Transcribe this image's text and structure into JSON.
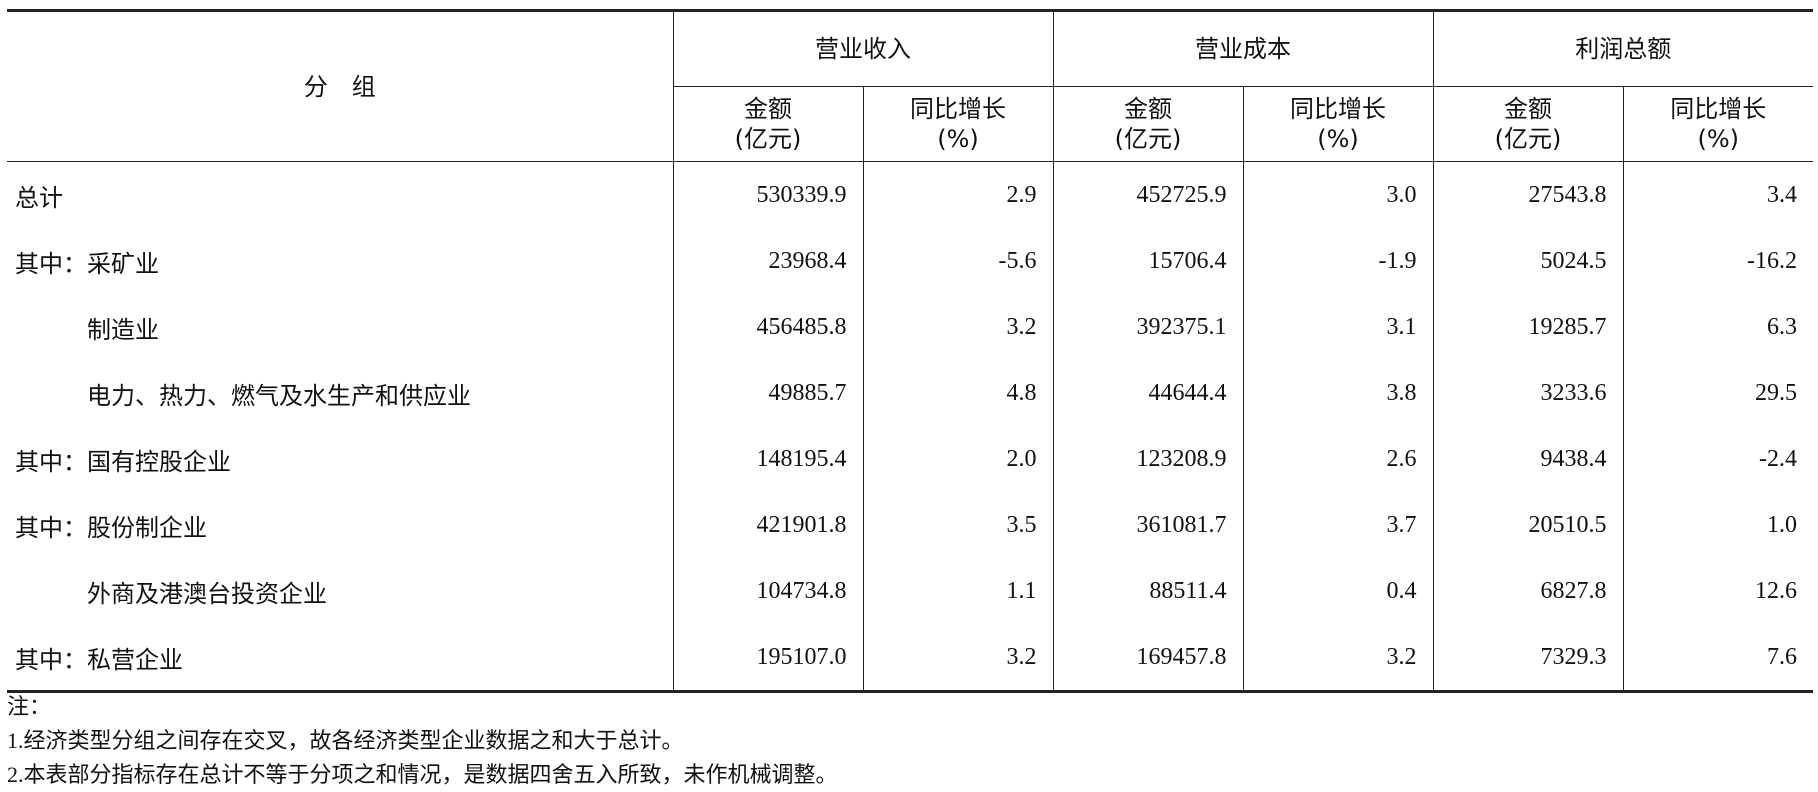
{
  "table": {
    "corner": "分　组",
    "groups": [
      "营业收入",
      "营业成本",
      "利润总额"
    ],
    "subheaders": [
      {
        "line1": "金额",
        "line2": "(亿元)"
      },
      {
        "line1": "同比增长",
        "line2": "(%)"
      },
      {
        "line1": "金额",
        "line2": "(亿元)"
      },
      {
        "line1": "同比增长",
        "line2": "(%)"
      },
      {
        "line1": "金额",
        "line2": "(亿元)"
      },
      {
        "line1": "同比增长",
        "line2": "(%)"
      }
    ],
    "rows": [
      {
        "label": "总计",
        "indent": false,
        "cells": [
          "530339.9",
          "2.9",
          "452725.9",
          "3.0",
          "27543.8",
          "3.4"
        ]
      },
      {
        "label": "其中：采矿业",
        "indent": false,
        "cells": [
          "23968.4",
          "-5.6",
          "15706.4",
          "-1.9",
          "5024.5",
          "-16.2"
        ]
      },
      {
        "label": "制造业",
        "indent": true,
        "cells": [
          "456485.8",
          "3.2",
          "392375.1",
          "3.1",
          "19285.7",
          "6.3"
        ]
      },
      {
        "label": "电力、热力、燃气及水生产和供应业",
        "indent": true,
        "cells": [
          "49885.7",
          "4.8",
          "44644.4",
          "3.8",
          "3233.6",
          "29.5"
        ]
      },
      {
        "label": "其中：国有控股企业",
        "indent": false,
        "cells": [
          "148195.4",
          "2.0",
          "123208.9",
          "2.6",
          "9438.4",
          "-2.4"
        ]
      },
      {
        "label": "其中：股份制企业",
        "indent": false,
        "cells": [
          "421901.8",
          "3.5",
          "361081.7",
          "3.7",
          "20510.5",
          "1.0"
        ]
      },
      {
        "label": "外商及港澳台投资企业",
        "indent": true,
        "cells": [
          "104734.8",
          "1.1",
          "88511.4",
          "0.4",
          "6827.8",
          "12.6"
        ]
      },
      {
        "label": "其中：私营企业",
        "indent": false,
        "cells": [
          "195107.0",
          "3.2",
          "169457.8",
          "3.2",
          "7329.3",
          "7.6"
        ]
      }
    ]
  },
  "notes": [
    "注：",
    "1.经济类型分组之间存在交叉，故各经济类型企业数据之和大于总计。",
    "2.本表部分指标存在总计不等于分项之和情况，是数据四舍五入所致，未作机械调整。"
  ]
}
